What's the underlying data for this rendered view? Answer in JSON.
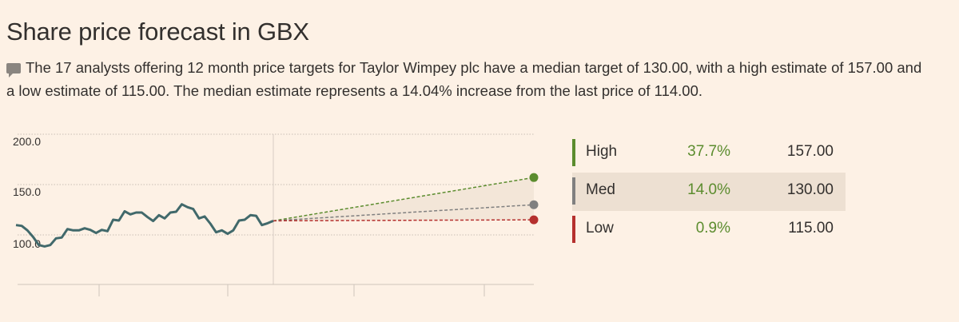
{
  "title": "Share price forecast in GBX",
  "description": "The 17 analysts offering 12 month price targets for Taylor Wimpey plc have a median target of 130.00, with a high estimate of 157.00 and a low estimate of 115.00. The median estimate represents a 14.04% increase from the last price of 114.00.",
  "icons": {
    "description": "speech-bubble-icon"
  },
  "colors": {
    "high": "#5b8c2e",
    "med": "#808080",
    "low": "#b5302e",
    "price_line": "#41696b",
    "pct_text": "#5b8c2e"
  },
  "chart_data": {
    "type": "line",
    "title": "Share price forecast in GBX",
    "ylim": [
      50,
      200
    ],
    "yticks": [
      "200.0",
      "150.0",
      "100.0"
    ],
    "ytick_values": [
      200,
      150,
      100
    ],
    "grid": true,
    "series": [
      {
        "name": "Price",
        "values": [
          109.8,
          109.0,
          104.5,
          97.9,
          89.9,
          88.6,
          89.9,
          96.6,
          97.4,
          105.8,
          104.5,
          104.5,
          106.6,
          105.0,
          101.9,
          105.0,
          103.7,
          115.1,
          114.3,
          123.5,
          120.4,
          122.2,
          122.2,
          117.7,
          113.8,
          119.6,
          116.4,
          122.2,
          123.0,
          130.4,
          127.5,
          125.7,
          116.4,
          118.3,
          111.1,
          102.6,
          104.5,
          101.1,
          104.5,
          114.3,
          115.1,
          119.6,
          119.0,
          109.8,
          111.6,
          114.0
        ]
      },
      {
        "name": "High",
        "from": 114.0,
        "to": 157.0
      },
      {
        "name": "Med",
        "from": 114.0,
        "to": 130.0
      },
      {
        "name": "Low",
        "from": 114.0,
        "to": 115.0
      }
    ]
  },
  "table": [
    {
      "label": "High",
      "pct": "37.7%",
      "value": "157.00"
    },
    {
      "label": "Med",
      "pct": "14.0%",
      "value": "130.00"
    },
    {
      "label": "Low",
      "pct": "0.9%",
      "value": "115.00"
    }
  ]
}
